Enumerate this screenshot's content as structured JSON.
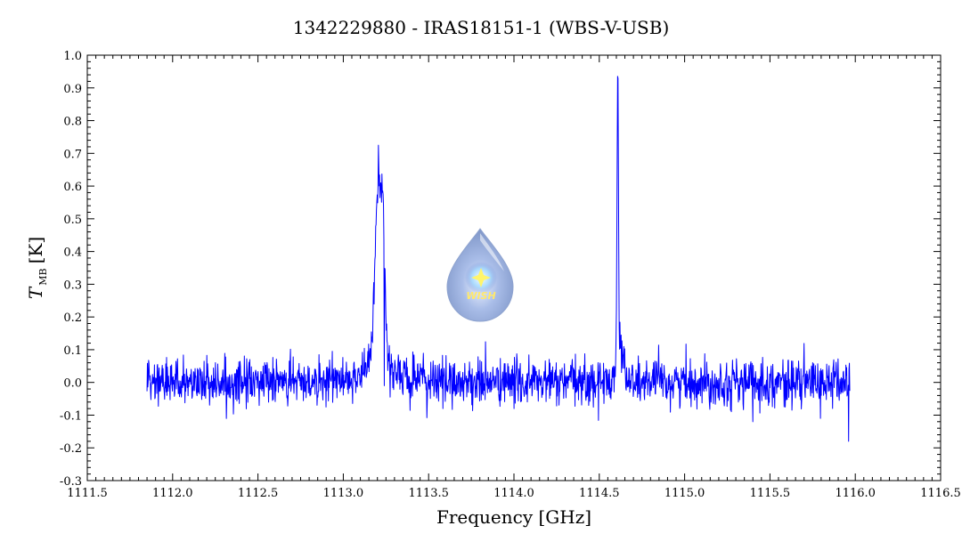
{
  "chart_data": {
    "type": "line",
    "title": "1342229880 - IRAS18151-1 (WBS-V-USB)",
    "xlabel": "Frequency [GHz]",
    "ylabel": {
      "symbol": "T",
      "subscript": "MB",
      "unit": "[K]"
    },
    "xlim": [
      1111.5,
      1116.5
    ],
    "ylim": [
      -0.3,
      1.0
    ],
    "x_ticks": [
      1111.5,
      1112.0,
      1112.5,
      1113.0,
      1113.5,
      1114.0,
      1114.5,
      1115.0,
      1115.5,
      1116.0,
      1116.5
    ],
    "x_tick_labels": [
      "1111.5",
      "1112.0",
      "1112.5",
      "1113.0",
      "1113.5",
      "1114.0",
      "1114.5",
      "1115.0",
      "1115.5",
      "1116.0",
      "1116.5"
    ],
    "y_ticks": [
      -0.3,
      -0.2,
      -0.1,
      0.0,
      0.1,
      0.2,
      0.3,
      0.4,
      0.5,
      0.6,
      0.7,
      0.8,
      0.9,
      1.0
    ],
    "y_tick_labels": [
      "-0.3",
      "-0.2",
      "-0.1",
      "0.0",
      "0.1",
      "0.2",
      "0.3",
      "0.4",
      "0.5",
      "0.6",
      "0.7",
      "0.8",
      "0.9",
      "1.0"
    ],
    "grid": false,
    "series": [
      {
        "color": "#0000ff",
        "x_range": [
          1111.85,
          1115.97
        ],
        "noise_rms": 0.035,
        "features": [
          {
            "center": 1113.205,
            "peak": 0.52,
            "width": 0.018,
            "wing_amp": 0.09,
            "wing_width": 0.07
          },
          {
            "center": 1113.235,
            "peak": 0.3,
            "width": 0.012
          },
          {
            "center": 1114.608,
            "peak": 0.9,
            "width": 0.004
          },
          {
            "center": 1114.62,
            "peak": 0.12,
            "width": 0.02
          }
        ],
        "extremes": [
          {
            "x": 1113.24,
            "y": -0.01
          },
          {
            "x": 1115.96,
            "y": -0.18
          },
          {
            "x": 1115.4,
            "y": -0.12
          }
        ]
      }
    ]
  },
  "logo": {
    "text": "WISH",
    "icon": "water-drop-star-icon"
  },
  "colors": {
    "line": "#0000ff",
    "axis": "#000000",
    "background": "#ffffff"
  }
}
